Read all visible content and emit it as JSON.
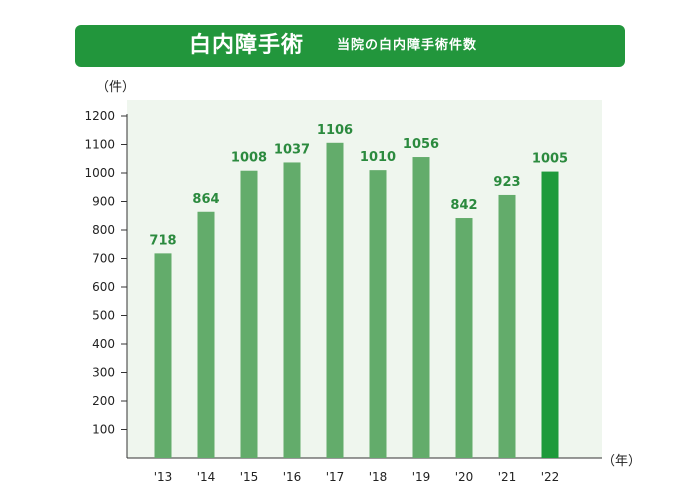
{
  "header": {
    "title": "白内障手術",
    "subtitle": "当院の白内障手術件数"
  },
  "colors": {
    "banner": "#22963c",
    "bar": "#63ac6b",
    "bar_highlight": "#1e9a3b",
    "plot_background": "#eff6ee",
    "value_label": "#2b8a3e"
  },
  "chart_data": {
    "type": "bar",
    "title": "",
    "ylabel": "（件）",
    "xlabel": "（年）",
    "categories": [
      "'13",
      "'14",
      "'15",
      "'16",
      "'17",
      "'18",
      "'19",
      "'20",
      "'21",
      "'22"
    ],
    "values": [
      718,
      864,
      1008,
      1037,
      1106,
      1010,
      1056,
      842,
      923,
      1005
    ],
    "value_labels": [
      "718",
      "864",
      "1008",
      "1037",
      "1106",
      "1010",
      "1056",
      "842",
      "923",
      "1005"
    ],
    "highlight_category": "'22",
    "ylim": [
      0,
      1200
    ],
    "yticks": [
      "100",
      "200",
      "300",
      "400",
      "500",
      "600",
      "700",
      "800",
      "900",
      "1000",
      "1100",
      "1200"
    ],
    "grid": false
  }
}
